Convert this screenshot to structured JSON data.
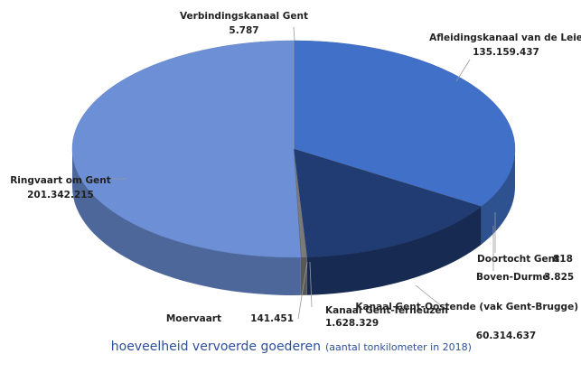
{
  "chart_data": {
    "type": "pie",
    "title": "hoeveelheid vervoerde goederen",
    "subtitle": "(aantal tonkilometer in 2018)",
    "categories": [
      "Afleidingskanaal van de Leie",
      "Doortocht Gent",
      "Boven-Durme",
      "Kanaal Gent-Oostende (vak Gent-Brugge)",
      "Kanaal Gent-Terneuzen",
      "Moervaart",
      "Ringvaart om Gent",
      "Verbindingskanaal Gent"
    ],
    "values": [
      135159437,
      818,
      3825,
      60314637,
      1628329,
      141451,
      201342215,
      5787
    ],
    "value_labels": [
      "135.159.437",
      "818",
      "3.825",
      "60.314.637",
      "1.628.329",
      "141.451",
      "201.342.215",
      "5.787"
    ],
    "colors": [
      "#4070c8",
      "#8a8a8a",
      "#a0a0a0",
      "#203c72",
      "#7a7a7a",
      "#6a6a6a",
      "#6d8fd6",
      "#b0b0b0"
    ]
  }
}
